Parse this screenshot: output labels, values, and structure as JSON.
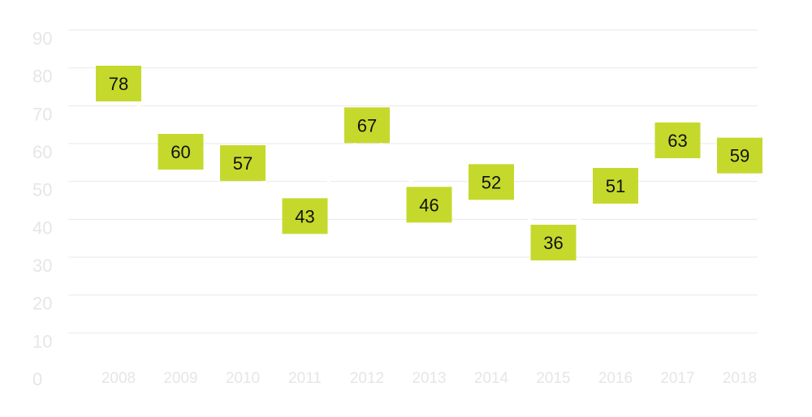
{
  "chart_data": {
    "type": "line",
    "title": "",
    "xlabel": "",
    "ylabel": "",
    "x": [
      "2008",
      "2009",
      "2010",
      "2011",
      "2012",
      "2013",
      "2014",
      "2015",
      "2016",
      "2017",
      "2018"
    ],
    "series": [
      {
        "values": [
          78,
          60,
          57,
          43,
          67,
          46,
          52,
          36,
          51,
          63,
          59
        ]
      }
    ],
    "ylim": [
      0,
      90
    ],
    "yticks": [
      0,
      10,
      20,
      30,
      40,
      50,
      60,
      70,
      80,
      90
    ],
    "grid": true,
    "colors": {
      "label_box": "#c5d92d",
      "line": "#ffffff",
      "grid": "#e9e9e9",
      "tick_text": "#e6e6e6",
      "label_text": "#111111"
    }
  }
}
